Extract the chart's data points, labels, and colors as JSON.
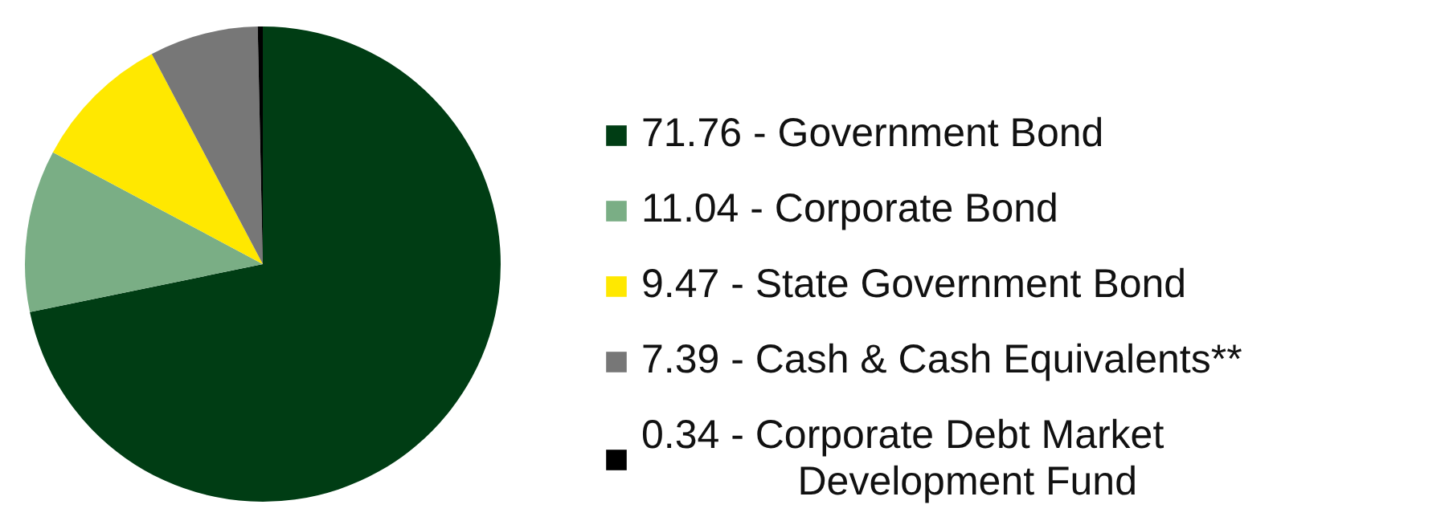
{
  "chart_data": {
    "type": "pie",
    "categories": [
      "71.76 - Government Bond",
      "11.04 - Corporate Bond",
      "9.47 - State Government Bond",
      "7.39 - Cash & Cash Equivalents**",
      "0.34 - Corporate Debt Market Development Fund"
    ],
    "values": [
      71.76,
      11.04,
      9.47,
      7.39,
      0.34
    ],
    "colors": [
      "#003d14",
      "#7aae85",
      "#ffe800",
      "#777777",
      "#000000"
    ],
    "legend": "right"
  }
}
